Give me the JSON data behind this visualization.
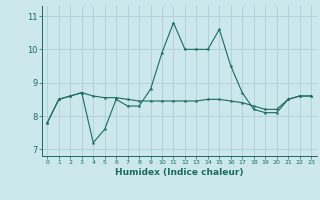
{
  "title": "",
  "xlabel": "Humidex (Indice chaleur)",
  "ylabel": "",
  "bg_color": "#cce8ec",
  "grid_color": "#aed0d6",
  "line_color": "#1a6b5e",
  "x": [
    0,
    1,
    2,
    3,
    4,
    5,
    6,
    7,
    8,
    9,
    10,
    11,
    12,
    13,
    14,
    15,
    16,
    17,
    18,
    19,
    20,
    21,
    22,
    23
  ],
  "line1": [
    7.8,
    8.5,
    8.6,
    8.7,
    7.2,
    7.6,
    8.5,
    8.3,
    8.3,
    8.8,
    9.9,
    10.8,
    10.0,
    10.0,
    10.0,
    10.6,
    9.5,
    8.7,
    8.2,
    8.1,
    8.1,
    8.5,
    8.6,
    8.6
  ],
  "line2": [
    7.8,
    8.5,
    8.6,
    8.7,
    8.6,
    8.55,
    8.55,
    8.5,
    8.45,
    8.45,
    8.45,
    8.45,
    8.45,
    8.45,
    8.5,
    8.5,
    8.45,
    8.4,
    8.3,
    8.2,
    8.2,
    8.5,
    8.6,
    8.6
  ],
  "ylim": [
    6.8,
    11.3
  ],
  "yticks": [
    7,
    8,
    9,
    10,
    11
  ],
  "xlim": [
    -0.5,
    23.5
  ]
}
